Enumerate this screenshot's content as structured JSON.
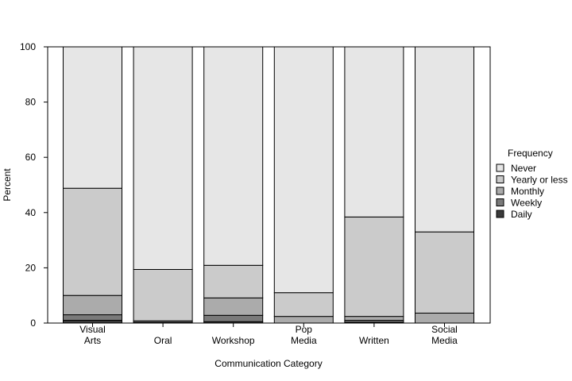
{
  "chart_data": {
    "type": "bar",
    "stacked": true,
    "title": "",
    "xlabel": "Communication Category",
    "ylabel": "Percent",
    "ylim": [
      0,
      100
    ],
    "yticks": [
      0,
      20,
      40,
      60,
      80,
      100
    ],
    "categories": [
      [
        "Visual",
        "Arts"
      ],
      [
        "Oral"
      ],
      [
        "Workshop"
      ],
      [
        "Pop",
        "Media"
      ],
      [
        "Written"
      ],
      [
        "Social",
        "Media"
      ]
    ],
    "legend": {
      "title": "Frequency",
      "position": "right"
    },
    "series": [
      {
        "name": "Daily",
        "color": "#3a3a3a",
        "values": [
          1.0,
          0.0,
          0.5,
          0.0,
          0.3,
          0.0
        ]
      },
      {
        "name": "Weekly",
        "color": "#7a7a7a",
        "values": [
          2.0,
          0.3,
          2.3,
          0.0,
          0.7,
          0.0
        ]
      },
      {
        "name": "Monthly",
        "color": "#ababab",
        "values": [
          7.0,
          0.5,
          6.3,
          2.4,
          1.4,
          3.6
        ]
      },
      {
        "name": "Yearly or less",
        "color": "#cbcbcb",
        "values": [
          38.8,
          18.6,
          11.8,
          8.6,
          36.0,
          29.4
        ]
      },
      {
        "name": "Never",
        "color": "#e6e6e6",
        "values": [
          51.2,
          80.6,
          79.1,
          89.0,
          61.6,
          67.0
        ]
      }
    ]
  }
}
